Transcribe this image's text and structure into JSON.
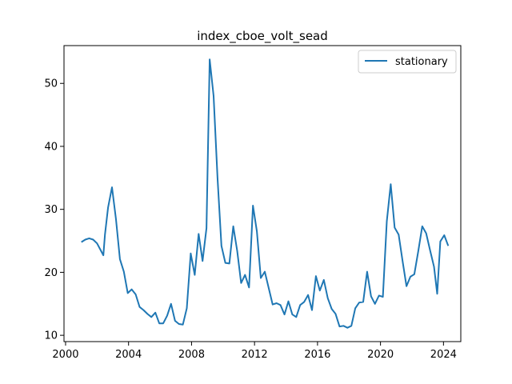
{
  "chart_data": {
    "type": "line",
    "title": "index_cboe_volt_sead",
    "xlabel": "",
    "ylabel": "",
    "xlim": [
      1999.9,
      2025.1
    ],
    "ylim": [
      9.0,
      56.0
    ],
    "xticks": [
      2000,
      2004,
      2008,
      2012,
      2016,
      2020,
      2024
    ],
    "yticks": [
      10,
      20,
      30,
      40,
      50
    ],
    "grid": false,
    "legend_position": "top-right",
    "line_color": "#1f77b4",
    "series": [
      {
        "name": "stationary",
        "points": [
          [
            2001.0,
            24.8
          ],
          [
            2001.25,
            25.2
          ],
          [
            2001.5,
            25.4
          ],
          [
            2001.75,
            25.2
          ],
          [
            2002.0,
            24.6
          ],
          [
            2002.25,
            23.4
          ],
          [
            2002.4,
            22.7
          ],
          [
            2002.5,
            26.0
          ],
          [
            2002.7,
            30.3
          ],
          [
            2002.95,
            33.5
          ],
          [
            2003.2,
            28.4
          ],
          [
            2003.45,
            22.1
          ],
          [
            2003.7,
            20.1
          ],
          [
            2003.95,
            16.7
          ],
          [
            2004.2,
            17.3
          ],
          [
            2004.45,
            16.5
          ],
          [
            2004.7,
            14.5
          ],
          [
            2004.95,
            14.0
          ],
          [
            2005.2,
            13.4
          ],
          [
            2005.45,
            12.9
          ],
          [
            2005.7,
            13.6
          ],
          [
            2005.95,
            11.9
          ],
          [
            2006.2,
            11.9
          ],
          [
            2006.45,
            13.1
          ],
          [
            2006.7,
            15.0
          ],
          [
            2006.95,
            12.3
          ],
          [
            2007.2,
            11.8
          ],
          [
            2007.45,
            11.7
          ],
          [
            2007.7,
            14.3
          ],
          [
            2007.95,
            23.0
          ],
          [
            2008.2,
            19.6
          ],
          [
            2008.45,
            26.1
          ],
          [
            2008.7,
            21.8
          ],
          [
            2008.95,
            27.0
          ],
          [
            2009.15,
            53.8
          ],
          [
            2009.4,
            48.0
          ],
          [
            2009.65,
            35.0
          ],
          [
            2009.9,
            24.2
          ],
          [
            2010.15,
            21.5
          ],
          [
            2010.4,
            21.4
          ],
          [
            2010.65,
            27.3
          ],
          [
            2010.9,
            23.4
          ],
          [
            2011.15,
            18.3
          ],
          [
            2011.4,
            19.6
          ],
          [
            2011.65,
            17.6
          ],
          [
            2011.9,
            30.6
          ],
          [
            2012.15,
            26.5
          ],
          [
            2012.4,
            19.1
          ],
          [
            2012.65,
            20.1
          ],
          [
            2012.9,
            17.5
          ],
          [
            2013.15,
            14.9
          ],
          [
            2013.4,
            15.1
          ],
          [
            2013.65,
            14.8
          ],
          [
            2013.9,
            13.3
          ],
          [
            2014.15,
            15.4
          ],
          [
            2014.4,
            13.3
          ],
          [
            2014.65,
            12.9
          ],
          [
            2014.9,
            14.8
          ],
          [
            2015.15,
            15.3
          ],
          [
            2015.4,
            16.4
          ],
          [
            2015.65,
            14.0
          ],
          [
            2015.9,
            19.4
          ],
          [
            2016.15,
            17.1
          ],
          [
            2016.4,
            18.8
          ],
          [
            2016.65,
            15.9
          ],
          [
            2016.9,
            14.2
          ],
          [
            2017.15,
            13.4
          ],
          [
            2017.4,
            11.4
          ],
          [
            2017.65,
            11.5
          ],
          [
            2017.9,
            11.2
          ],
          [
            2018.15,
            11.5
          ],
          [
            2018.4,
            14.3
          ],
          [
            2018.65,
            15.2
          ],
          [
            2018.9,
            15.3
          ],
          [
            2019.15,
            20.1
          ],
          [
            2019.4,
            16.2
          ],
          [
            2019.65,
            15.0
          ],
          [
            2019.9,
            16.3
          ],
          [
            2020.15,
            16.1
          ],
          [
            2020.4,
            28.1
          ],
          [
            2020.65,
            34.0
          ],
          [
            2020.9,
            27.1
          ],
          [
            2021.15,
            26.0
          ],
          [
            2021.4,
            21.8
          ],
          [
            2021.65,
            17.8
          ],
          [
            2021.9,
            19.3
          ],
          [
            2022.15,
            19.7
          ],
          [
            2022.4,
            23.4
          ],
          [
            2022.65,
            27.3
          ],
          [
            2022.9,
            26.2
          ],
          [
            2023.15,
            23.5
          ],
          [
            2023.4,
            20.9
          ],
          [
            2023.6,
            16.6
          ],
          [
            2023.8,
            24.9
          ],
          [
            2024.05,
            25.9
          ],
          [
            2024.3,
            24.2
          ]
        ]
      }
    ]
  }
}
